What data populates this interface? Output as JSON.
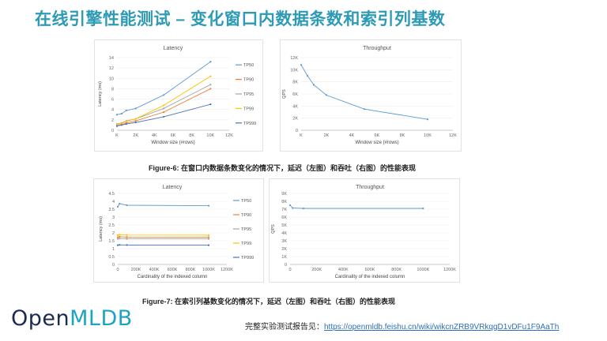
{
  "page": {
    "title": "在线引擎性能测试 – 变化窗口内数据条数和索引列基数",
    "caption1": "Figure-6: 在窗口内数据条数变化的情况下，延迟（左图）和吞吐（右图）的性能表现",
    "caption2": "Figure-7: 在索引列基数变化的情况下，延迟（左图）和吞吐（右图）的性能表现",
    "logo_open": "Open",
    "logo_mldb": "MLDB",
    "report_label": "完整实验测试报告见：",
    "report_url": "https://openmldb.feishu.cn/wiki/wikcnZRB9VRkqgD1vDFu1F9AaTh",
    "colors": {
      "title": "#2d9bb5",
      "tp50": "#5b9bd5",
      "tp90": "#ed7d31",
      "tp95": "#a5a5a5",
      "tp99": "#ffc000",
      "tp999": "#4472c4"
    }
  },
  "chart_data": [
    {
      "type": "line",
      "title": "Latency",
      "xlabel": "Window size (#rows)",
      "ylabel": "Latency (ms)",
      "xticks": [
        "K",
        "2K",
        "4K",
        "6K",
        "8K",
        "10K",
        "12K"
      ],
      "xlim": [
        0,
        12
      ],
      "ylim": [
        0,
        14
      ],
      "yticks": [
        "0",
        "2",
        "4",
        "6",
        "8",
        "10",
        "12",
        "14"
      ],
      "x": [
        0,
        0.5,
        1,
        2,
        5,
        10
      ],
      "series": [
        {
          "name": "TP50",
          "color": "#5b9bd5",
          "values": [
            3.0,
            3.2,
            3.8,
            4.2,
            6.8,
            13.2
          ]
        },
        {
          "name": "TP90",
          "color": "#ed7d31",
          "values": [
            0.9,
            1.1,
            1.4,
            1.8,
            3.5,
            8.0
          ]
        },
        {
          "name": "TP95",
          "color": "#a5a5a5",
          "values": [
            1.2,
            1.4,
            1.8,
            2.2,
            4.2,
            8.8
          ]
        },
        {
          "name": "TP99",
          "color": "#ffc000",
          "values": [
            1.1,
            1.3,
            1.7,
            2.2,
            4.8,
            10.4
          ]
        },
        {
          "name": "TP999",
          "color": "#4472c4",
          "values": [
            0.8,
            1.0,
            1.2,
            1.5,
            2.6,
            5.0
          ]
        }
      ]
    },
    {
      "type": "line",
      "title": "Throughput",
      "xlabel": "Window size (#rows)",
      "ylabel": "QPS",
      "xticks": [
        "K",
        "2K",
        "4K",
        "6K",
        "8K",
        "10K",
        "12K"
      ],
      "xlim": [
        0,
        12
      ],
      "ylim": [
        0,
        12000
      ],
      "yticks": [
        "0",
        "2K",
        "4K",
        "6K",
        "8K",
        "10K",
        "12K"
      ],
      "x": [
        0,
        0.5,
        1,
        2,
        5,
        10
      ],
      "series": [
        {
          "name": "",
          "color": "#5b9bd5",
          "values": [
            10800,
            9000,
            7500,
            5800,
            3500,
            1800
          ]
        }
      ]
    },
    {
      "type": "line",
      "title": "Latency",
      "xlabel": "Cardinality of the indexed column",
      "ylabel": "Latency (ms)",
      "xticks": [
        "0",
        "200K",
        "400K",
        "600K",
        "800K",
        "1000K",
        "1200K"
      ],
      "xlim": [
        0,
        1200
      ],
      "ylim": [
        0,
        4.5
      ],
      "yticks": [
        "0",
        "0.5",
        "1",
        "1.5",
        "2",
        "2.5",
        "3",
        "3.5",
        "4",
        "4.5"
      ],
      "x": [
        0,
        20,
        100,
        1000
      ],
      "series": [
        {
          "name": "TP50",
          "color": "#5b9bd5",
          "values": [
            3.65,
            3.85,
            3.75,
            3.72
          ]
        },
        {
          "name": "TP90",
          "color": "#ed7d31",
          "values": [
            1.72,
            1.75,
            1.73,
            1.72
          ]
        },
        {
          "name": "TP95",
          "color": "#a5a5a5",
          "values": [
            1.62,
            1.64,
            1.62,
            1.62
          ]
        },
        {
          "name": "TP99",
          "color": "#ffc000",
          "values": [
            1.85,
            1.88,
            1.86,
            1.85
          ]
        },
        {
          "name": "TP999",
          "color": "#4472c4",
          "values": [
            1.22,
            1.24,
            1.23,
            1.22
          ]
        }
      ]
    },
    {
      "type": "line",
      "title": "Throughput",
      "xlabel": "Cardinality of the indexed column",
      "ylabel": "QPS",
      "xticks": [
        "0",
        "200K",
        "400K",
        "600K",
        "800K",
        "1000K",
        "1200K"
      ],
      "xlim": [
        0,
        1200
      ],
      "ylim": [
        0,
        9000
      ],
      "yticks": [
        "0",
        "1K",
        "2K",
        "3K",
        "4K",
        "5K",
        "6K",
        "7K",
        "8K",
        "9K"
      ],
      "x": [
        0,
        20,
        100,
        1000
      ],
      "series": [
        {
          "name": "",
          "color": "#5b9bd5",
          "values": [
            7500,
            7150,
            7100,
            7100
          ]
        }
      ]
    }
  ]
}
